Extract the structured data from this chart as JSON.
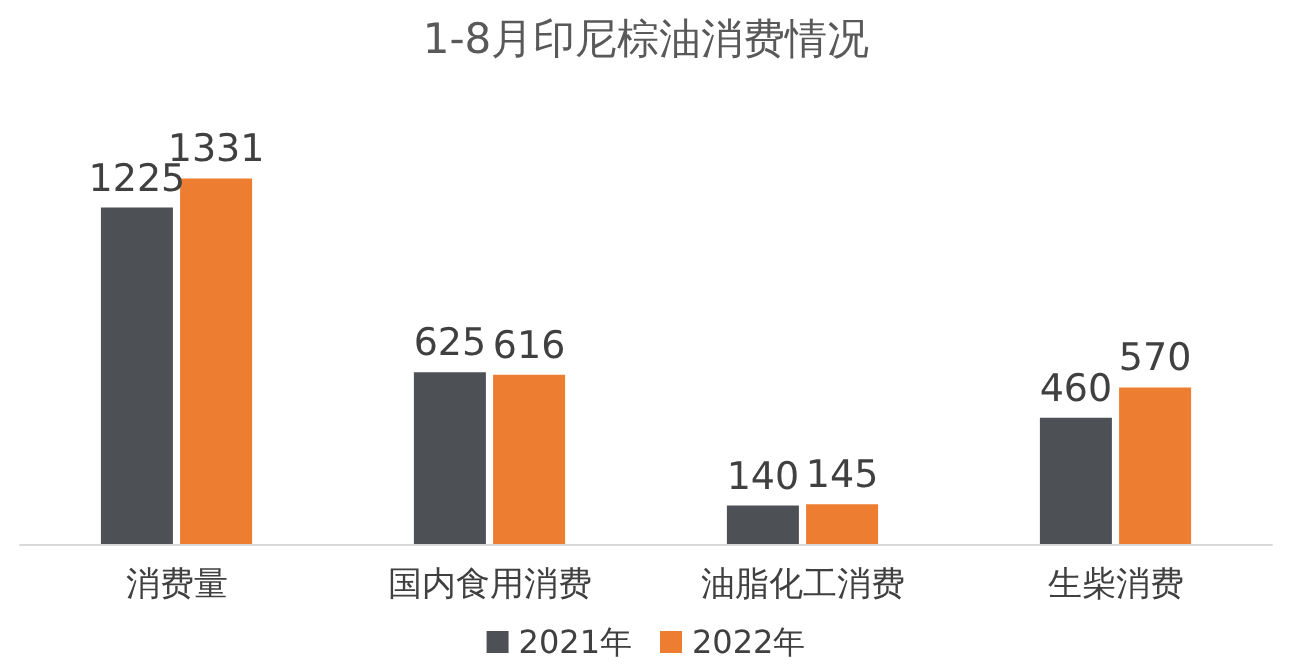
{
  "chart_data": {
    "type": "bar",
    "title": "1-8月印尼棕油消费情况",
    "categories": [
      "消费量",
      "国内食用消费",
      "油脂化工消费",
      "生柴消费"
    ],
    "series": [
      {
        "name": "2021年",
        "color": "#4d5054",
        "values": [
          1225,
          625,
          140,
          460
        ]
      },
      {
        "name": "2022年",
        "color": "#ed7d31",
        "values": [
          1331,
          616,
          145,
          570
        ]
      }
    ],
    "data_labels": true,
    "legend": "bottom"
  }
}
